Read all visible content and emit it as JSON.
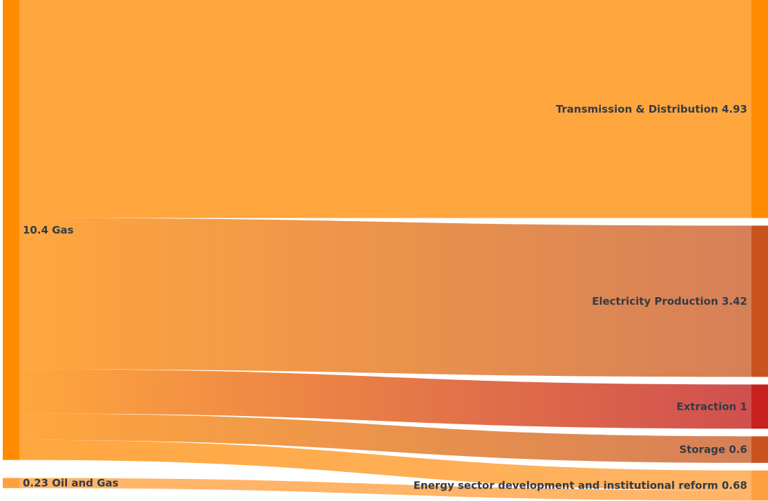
{
  "chart_data": {
    "type": "sankey",
    "unit": "",
    "sources": [
      {
        "id": "gas",
        "name": "Gas",
        "value": 10.4,
        "label": "10.4 Gas",
        "color": "#ff8c00"
      },
      {
        "id": "oil_gas",
        "name": "Oil and Gas",
        "value": 0.23,
        "label": "0.23 Oil and Gas",
        "color": "#ffa040"
      }
    ],
    "targets": [
      {
        "id": "td",
        "name": "Transmission & Distribution",
        "value": 4.93,
        "label": "Transmission & Distribution 4.93",
        "color": "#ff8c00"
      },
      {
        "id": "ep",
        "name": "Electricity Production",
        "value": 3.42,
        "label": "Electricity Production 3.42",
        "color": "#c8531e"
      },
      {
        "id": "ex",
        "name": "Extraction",
        "value": 1,
        "label": "Extraction 1",
        "color": "#c8201e"
      },
      {
        "id": "st",
        "name": "Storage",
        "value": 0.6,
        "label": "Storage 0.6",
        "color": "#c8531e"
      },
      {
        "id": "esd",
        "name": "Energy sector development and institutional reform",
        "value": 0.68,
        "label": "Energy sector development and institutional reform 0.68",
        "color": "#ffa040"
      }
    ],
    "links": [
      {
        "source": "gas",
        "target": "td",
        "value": 4.93,
        "color_from": "#ff9f2e",
        "color_to": "#ff9f2e"
      },
      {
        "source": "gas",
        "target": "ep",
        "value": 3.42,
        "color_from": "#ff9f2e",
        "color_to": "#d2754a"
      },
      {
        "source": "gas",
        "target": "ex",
        "value": 1,
        "color_from": "#ff9f2e",
        "color_to": "#cc4040"
      },
      {
        "source": "gas",
        "target": "st",
        "value": 0.6,
        "color_from": "#ff9f2e",
        "color_to": "#d2754a"
      },
      {
        "source": "gas",
        "target": "esd",
        "value": 0.45,
        "color_from": "#ff9f2e",
        "color_to": "#ffae5a"
      },
      {
        "source": "oil_gas",
        "target": "esd",
        "value": 0.23,
        "color_from": "#ffae5a",
        "color_to": "#ffae5a"
      }
    ]
  }
}
